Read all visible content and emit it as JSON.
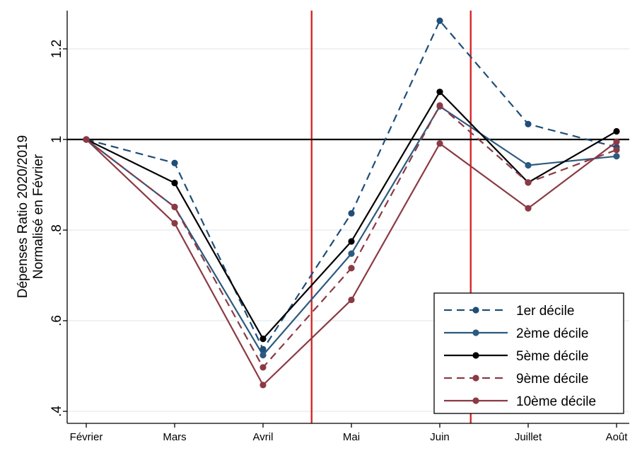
{
  "chart_data": {
    "type": "line",
    "title": "",
    "xlabel": "",
    "ylabel_line1": "Dépenses Ratio 2020/2019",
    "ylabel_line2": "Normalisé en Février",
    "categories": [
      "Février",
      "Mars",
      "Avril",
      "Mai",
      "Juin",
      "Juillet",
      "Août"
    ],
    "ylim": [
      0.4,
      1.28
    ],
    "yticks": [
      {
        "value": 0.4,
        "label": ".4"
      },
      {
        "value": 0.6,
        "label": ".6"
      },
      {
        "value": 0.8,
        "label": ".8"
      },
      {
        "value": 1.0,
        "label": "1"
      },
      {
        "value": 1.2,
        "label": "1.2"
      }
    ],
    "reference_line": 1.0,
    "vertical_markers": [
      {
        "between": [
          "Mars",
          "Avril"
        ],
        "position": 2.55,
        "color": "#d62728"
      },
      {
        "between": [
          "Mai",
          "Juin"
        ],
        "position": 4.35,
        "color": "#d62728"
      }
    ],
    "grid": "horizontal",
    "legend_position": "bottom-right",
    "series": [
      {
        "name": "1er décile",
        "color": "#1f4e79",
        "dash": "dashed",
        "values": [
          1.0,
          0.948,
          0.537,
          0.837,
          1.262,
          1.034,
          0.983
        ]
      },
      {
        "name": "2ème décile",
        "color": "#2c5a7f",
        "dash": "solid",
        "values": [
          1.0,
          0.851,
          0.524,
          0.748,
          1.073,
          0.943,
          0.963
        ]
      },
      {
        "name": "5ème décile",
        "color": "#000000",
        "dash": "solid",
        "values": [
          1.0,
          0.904,
          0.56,
          0.775,
          1.105,
          0.905,
          1.018
        ]
      },
      {
        "name": "9ème décile",
        "color": "#8b3a44",
        "dash": "dashed",
        "values": [
          1.0,
          0.851,
          0.497,
          0.716,
          1.075,
          0.905,
          0.977
        ]
      },
      {
        "name": "10ème décile",
        "color": "#8b3a44",
        "dash": "solid",
        "values": [
          1.0,
          0.815,
          0.458,
          0.646,
          0.991,
          0.848,
          0.995
        ]
      }
    ]
  }
}
